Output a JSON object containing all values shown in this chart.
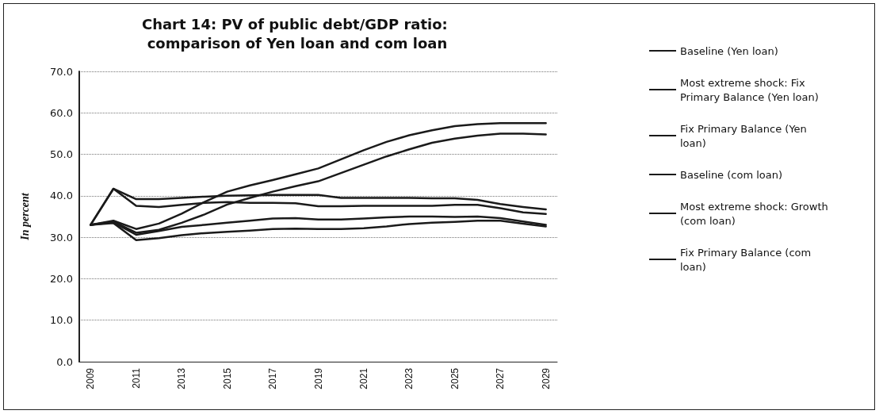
{
  "chart_data": {
    "type": "line",
    "title": "Chart 14: PV of public debt/GDP ratio: comparison of Yen loan and com loan",
    "ylabel": "In percent",
    "categories": [
      "2009",
      null,
      "2011",
      null,
      "2013",
      null,
      "2015",
      null,
      "2017",
      null,
      "2019",
      null,
      "2021",
      null,
      "2023",
      null,
      "2025",
      null,
      "2027",
      null,
      "2029"
    ],
    "series": [
      {
        "name": "Baseline (Yen loan)",
        "color": "#1a1a1a",
        "values": [
          33,
          33.6,
          30.6,
          31.5,
          32.5,
          33,
          33.5,
          34,
          34.5,
          34.6,
          34.3,
          34.3,
          34.5,
          34.8,
          35,
          35,
          34.9,
          35,
          34.6,
          33.8,
          33
        ]
      },
      {
        "name": "Most extreme shock: Fix Primary Balance (Yen loan)",
        "color": "#1a1a1a",
        "values": [
          33,
          34,
          32,
          33.3,
          35.7,
          38.5,
          41,
          42.5,
          43.8,
          45.2,
          46.6,
          48.8,
          51,
          53,
          54.6,
          55.8,
          56.8,
          57.3,
          57.5,
          57.5,
          57.5
        ]
      },
      {
        "name": "Fix Primary Balance (Yen loan)",
        "color": "#1a1a1a",
        "values": [
          33,
          33.8,
          31.1,
          31.8,
          33.5,
          35.5,
          37.9,
          39.5,
          41,
          42.3,
          43.5,
          45.5,
          47.5,
          49.5,
          51.2,
          52.8,
          53.8,
          54.5,
          55,
          55,
          54.8
        ]
      },
      {
        "name": "Baseline (com loan)",
        "color": "#1a1a1a",
        "values": [
          33,
          33.4,
          29.3,
          29.8,
          30.5,
          31,
          31.3,
          31.6,
          32,
          32.1,
          32,
          32,
          32.2,
          32.6,
          33.2,
          33.5,
          33.7,
          34,
          34,
          33.3,
          32.6
        ]
      },
      {
        "name": "Most extreme shock: Growth (com loan)",
        "color": "#1a1a1a",
        "values": [
          33,
          41.7,
          39.2,
          39.2,
          39.5,
          39.8,
          40,
          40.1,
          40.2,
          40.2,
          40.2,
          39.5,
          39.5,
          39.5,
          39.5,
          39.4,
          39.4,
          39,
          38,
          37.3,
          36.7
        ]
      },
      {
        "name": "Fix Primary Balance (com loan)",
        "color": "#1a1a1a",
        "values": [
          33,
          41.7,
          37.6,
          37.3,
          37.8,
          38.3,
          38.5,
          38.3,
          38.3,
          38.2,
          37.5,
          37.5,
          37.6,
          37.6,
          37.6,
          37.6,
          37.8,
          37.8,
          37,
          36,
          35.6
        ]
      }
    ],
    "ylim": [
      0,
      70
    ],
    "yticks": [
      {
        "value": 0,
        "label": "0.0"
      },
      {
        "value": 10,
        "label": "10.0"
      },
      {
        "value": 20,
        "label": "20.0"
      },
      {
        "value": 30,
        "label": "30.0"
      },
      {
        "value": 40,
        "label": "40.0"
      },
      {
        "value": 50,
        "label": "50.0"
      },
      {
        "value": 60,
        "label": "60.0"
      },
      {
        "value": 70,
        "label": "70.0"
      }
    ],
    "grid": "y",
    "legend": "right",
    "marker": "none",
    "line_style": "solid"
  }
}
